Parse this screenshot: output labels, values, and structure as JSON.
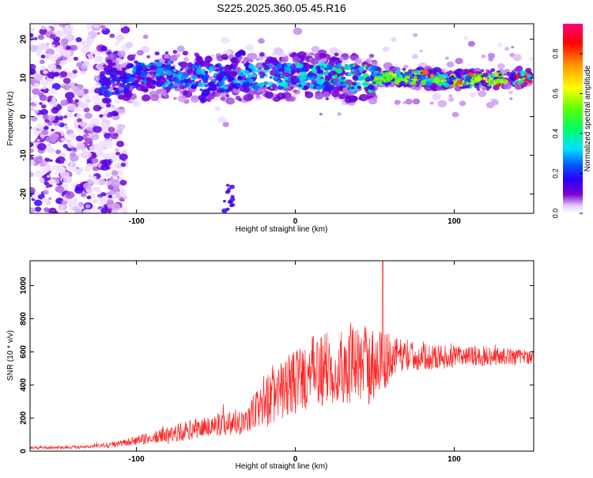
{
  "title": "S225.2025.360.05.45.R16",
  "chart_data": [
    {
      "type": "heatmap",
      "xlabel": "Height of straight line (km)",
      "ylabel": "Frequency (Hz)",
      "xlim": [
        -167,
        150
      ],
      "ylim": [
        -25,
        24
      ],
      "xticks": [
        -100,
        0,
        100
      ],
      "yticks": [
        -20,
        -10,
        0,
        10,
        20
      ],
      "colorbar": {
        "label": "Normalized spectral amplitude",
        "range": [
          0,
          0.95
        ],
        "ticks": [
          0.0,
          0.2,
          0.4,
          0.6,
          0.8
        ],
        "colors": [
          "#ffffff",
          "#e6ccff",
          "#7a00cc",
          "#2a00ff",
          "#0060ff",
          "#00e0ff",
          "#00ff60",
          "#66ff00",
          "#ffff00",
          "#ff9900",
          "#ff0000",
          "#ff0080"
        ]
      },
      "ridge": [
        {
          "x": -122,
          "freq": 8.0,
          "amp": 0.15
        },
        {
          "x": -100,
          "freq": 10.5,
          "amp": 0.22
        },
        {
          "x": -80,
          "freq": 11.0,
          "amp": 0.25
        },
        {
          "x": -60,
          "freq": 10.0,
          "amp": 0.25
        },
        {
          "x": -40,
          "freq": 10.0,
          "amp": 0.28
        },
        {
          "x": -20,
          "freq": 10.5,
          "amp": 0.3
        },
        {
          "x": 0,
          "freq": 10.5,
          "amp": 0.32
        },
        {
          "x": 20,
          "freq": 10.5,
          "amp": 0.35
        },
        {
          "x": 40,
          "freq": 10.0,
          "amp": 0.38
        },
        {
          "x": 60,
          "freq": 10.0,
          "amp": 0.6
        },
        {
          "x": 80,
          "freq": 10.0,
          "amp": 0.7
        },
        {
          "x": 100,
          "freq": 9.5,
          "amp": 0.75
        },
        {
          "x": 120,
          "freq": 9.5,
          "amp": 0.8
        },
        {
          "x": 145,
          "freq": 10.0,
          "amp": 0.9
        }
      ]
    },
    {
      "type": "line",
      "xlabel": "Height of straight line (km)",
      "ylabel": "SNR (10 * v/v)",
      "xlim": [
        -167,
        150
      ],
      "ylim": [
        0,
        1150
      ],
      "xticks": [
        -100,
        0,
        100
      ],
      "yticks": [
        0,
        200,
        400,
        600,
        800,
        1000
      ],
      "color": "#ff2222",
      "envelope": [
        {
          "x": -167,
          "mean": 20,
          "noise": 8
        },
        {
          "x": -130,
          "mean": 25,
          "noise": 10
        },
        {
          "x": -110,
          "mean": 45,
          "noise": 20
        },
        {
          "x": -90,
          "mean": 80,
          "noise": 35
        },
        {
          "x": -70,
          "mean": 120,
          "noise": 60
        },
        {
          "x": -50,
          "mean": 160,
          "noise": 70
        },
        {
          "x": -30,
          "mean": 190,
          "noise": 90
        },
        {
          "x": -20,
          "mean": 300,
          "noise": 160
        },
        {
          "x": -10,
          "mean": 350,
          "noise": 180
        },
        {
          "x": 0,
          "mean": 420,
          "noise": 200
        },
        {
          "x": 10,
          "mean": 470,
          "noise": 220
        },
        {
          "x": 20,
          "mean": 500,
          "noise": 230
        },
        {
          "x": 35,
          "mean": 520,
          "noise": 230
        },
        {
          "x": 50,
          "mean": 530,
          "noise": 240
        },
        {
          "x": 65,
          "mean": 580,
          "noise": 100
        },
        {
          "x": 80,
          "mean": 570,
          "noise": 80
        },
        {
          "x": 100,
          "mean": 570,
          "noise": 70
        },
        {
          "x": 120,
          "mean": 575,
          "noise": 60
        },
        {
          "x": 150,
          "mean": 570,
          "noise": 40
        }
      ],
      "peak": {
        "x": 55,
        "y": 1150
      }
    }
  ]
}
